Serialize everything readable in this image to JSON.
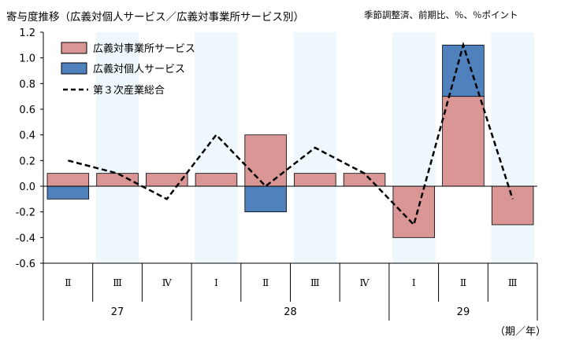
{
  "header": {
    "title": "寄与度推移（広義対個人サービス／広義対事業所サービス別）",
    "note": "季節調整済、前期比、％、％ポイント"
  },
  "chart_data": {
    "type": "bar",
    "stacked": true,
    "categories": [
      "Ⅱ",
      "Ⅲ",
      "Ⅳ",
      "Ⅰ",
      "Ⅱ",
      "Ⅲ",
      "Ⅳ",
      "Ⅰ",
      "Ⅱ",
      "Ⅲ"
    ],
    "year_groups": [
      {
        "label": "27",
        "span": 3
      },
      {
        "label": "28",
        "span": 4
      },
      {
        "label": "29",
        "span": 3
      }
    ],
    "series": [
      {
        "name": "広義対事業所サービス",
        "kind": "bar",
        "color": "#d99694",
        "values": [
          0.1,
          0.1,
          0.1,
          0.1,
          0.4,
          0.1,
          0.1,
          -0.4,
          0.7,
          -0.3
        ]
      },
      {
        "name": "広義対個人サービス",
        "kind": "bar",
        "color": "#4f81bd",
        "values": [
          -0.1,
          0.0,
          0.0,
          0.0,
          -0.2,
          0.0,
          0.0,
          0.0,
          0.4,
          0.0
        ]
      },
      {
        "name": "第３次産業総合",
        "kind": "line",
        "style": "dashed",
        "color": "#000000",
        "values": [
          0.2,
          0.1,
          -0.1,
          0.4,
          0.0,
          0.3,
          0.1,
          -0.3,
          1.1,
          -0.1
        ]
      }
    ],
    "ylim": [
      -0.6,
      1.2
    ],
    "yticks": [
      "1.2",
      "1.0",
      "0.8",
      "0.6",
      "0.4",
      "0.2",
      "0.0",
      "-0.2",
      "-0.4",
      "-0.6"
    ],
    "shaded_quarter": "Ⅰ",
    "shade_color": "#eef7fb",
    "legend_position": "top-left",
    "x_unit": "（期／年）"
  }
}
